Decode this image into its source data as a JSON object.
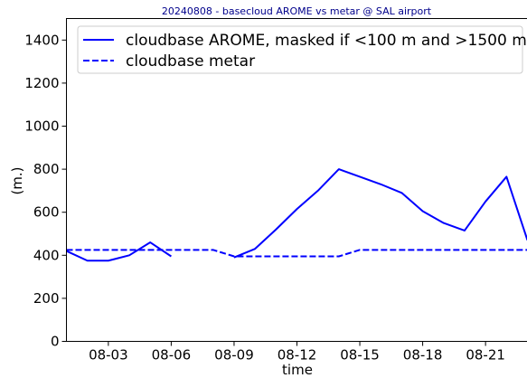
{
  "chart_data": {
    "type": "line",
    "title": "20240808 - basecloud AROME vs metar @ SAL airport",
    "xlabel": "time",
    "ylabel": "(m.)",
    "ylim": [
      0,
      1500
    ],
    "xlim": [
      "2024-08-01",
      "2024-08-23"
    ],
    "grid": false,
    "legend_position": "top",
    "yticks": [
      0,
      200,
      400,
      600,
      800,
      1000,
      1200,
      1400
    ],
    "xticks": [
      "08-03",
      "08-06",
      "08-09",
      "08-12",
      "08-15",
      "08-18",
      "08-21"
    ],
    "xtick_dates": [
      "2024-08-03",
      "2024-08-06",
      "2024-08-09",
      "2024-08-12",
      "2024-08-15",
      "2024-08-18",
      "2024-08-21"
    ],
    "series": [
      {
        "name": "cloudbase AROME, masked if <100 m and >1500 m",
        "color": "#0000ff",
        "dash": "solid",
        "segments": [
          [
            [
              "2024-08-01",
              420
            ],
            [
              "2024-08-02",
              375
            ],
            [
              "2024-08-03",
              375
            ],
            [
              "2024-08-04",
              400
            ],
            [
              "2024-08-05",
              460
            ],
            [
              "2024-08-06",
              395
            ]
          ],
          [
            [
              "2024-08-09",
              390
            ],
            [
              "2024-08-10",
              430
            ],
            [
              "2024-08-11",
              520
            ],
            [
              "2024-08-12",
              615
            ],
            [
              "2024-08-13",
              700
            ],
            [
              "2024-08-14",
              800
            ],
            [
              "2024-08-15",
              765
            ],
            [
              "2024-08-16",
              730
            ],
            [
              "2024-08-17",
              690
            ],
            [
              "2024-08-18",
              605
            ],
            [
              "2024-08-19",
              550
            ],
            [
              "2024-08-20",
              515
            ],
            [
              "2024-08-21",
              650
            ],
            [
              "2024-08-22",
              765
            ],
            [
              "2024-08-23",
              470
            ]
          ]
        ]
      },
      {
        "name": "cloudbase metar",
        "color": "#0000ff",
        "dash": "dashed",
        "segments": [
          [
            [
              "2024-08-01",
              425
            ],
            [
              "2024-08-08",
              425
            ],
            [
              "2024-08-09",
              395
            ],
            [
              "2024-08-14",
              395
            ],
            [
              "2024-08-15",
              425
            ],
            [
              "2024-08-23",
              425
            ]
          ]
        ]
      }
    ]
  }
}
